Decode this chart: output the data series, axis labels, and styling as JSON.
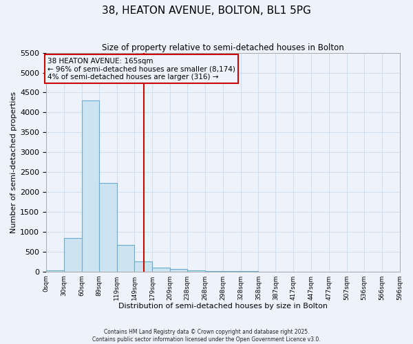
{
  "title": "38, HEATON AVENUE, BOLTON, BL1 5PG",
  "subtitle": "Size of property relative to semi-detached houses in Bolton",
  "xlabel": "Distribution of semi-detached houses by size in Bolton",
  "ylabel": "Number of semi-detached properties",
  "bar_edges": [
    0,
    30,
    60,
    89,
    119,
    149,
    179,
    209,
    238,
    268,
    298,
    328,
    358,
    387,
    417,
    447,
    477,
    507,
    536,
    566,
    596
  ],
  "bar_heights": [
    30,
    840,
    4300,
    2230,
    670,
    255,
    100,
    55,
    25,
    10,
    5,
    2,
    1,
    0,
    0,
    0,
    0,
    0,
    0,
    0
  ],
  "bar_color": "#cce4f0",
  "bar_edgecolor": "#6aabcf",
  "vline_x": 165,
  "vline_color": "#cc0000",
  "annotation_title": "38 HEATON AVENUE: 165sqm",
  "annotation_line1": "← 96% of semi-detached houses are smaller (8,174)",
  "annotation_line2": "4% of semi-detached houses are larger (316) →",
  "annotation_box_edgecolor": "#cc0000",
  "ylim": [
    0,
    5500
  ],
  "yticks": [
    0,
    500,
    1000,
    1500,
    2000,
    2500,
    3000,
    3500,
    4000,
    4500,
    5000,
    5500
  ],
  "xtick_labels": [
    "0sqm",
    "30sqm",
    "60sqm",
    "89sqm",
    "119sqm",
    "149sqm",
    "179sqm",
    "209sqm",
    "238sqm",
    "268sqm",
    "298sqm",
    "328sqm",
    "358sqm",
    "387sqm",
    "417sqm",
    "447sqm",
    "477sqm",
    "507sqm",
    "536sqm",
    "566sqm",
    "596sqm"
  ],
  "footer1": "Contains HM Land Registry data © Crown copyright and database right 2025.",
  "footer2": "Contains public sector information licensed under the Open Government Licence v3.0.",
  "grid_color": "#d0dff0",
  "background_color": "#eef3fb"
}
